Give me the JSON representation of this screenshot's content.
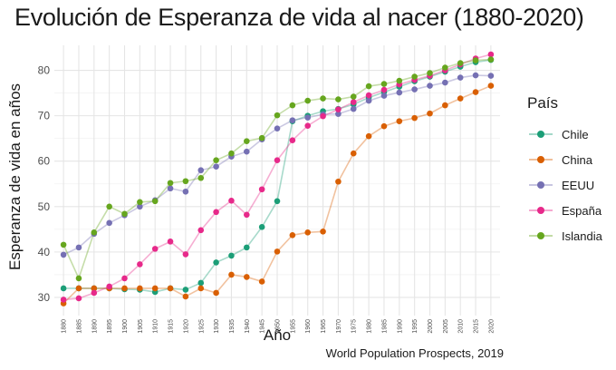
{
  "title": "Evolución de Esperanza de vida al nacer (1880-2020)",
  "caption": "World Population Prospects, 2019",
  "legend_title": "País",
  "chart_data": {
    "type": "line",
    "title": "Evolución de Esperanza de vida al nacer (1880-2020)",
    "xlabel": "Año",
    "ylabel": "Esperanza de vida en años",
    "xlim": [
      1877,
      2023
    ],
    "ylim": [
      26.0,
      85.5
    ],
    "yticks": [
      30,
      40,
      50,
      60,
      70,
      80
    ],
    "x": [
      1880,
      1885,
      1890,
      1895,
      1900,
      1905,
      1910,
      1915,
      1920,
      1925,
      1930,
      1935,
      1940,
      1945,
      1950,
      1955,
      1960,
      1965,
      1970,
      1975,
      1980,
      1985,
      1990,
      1995,
      2000,
      2005,
      2010,
      2015,
      2020
    ],
    "grid": true,
    "legend_position": "right",
    "series": [
      {
        "name": "Chile",
        "color": "#1b9e77",
        "values": [
          32.0,
          32.0,
          32.0,
          32.0,
          31.8,
          31.7,
          31.2,
          32.0,
          31.7,
          33.2,
          37.7,
          39.2,
          41.0,
          45.5,
          51.2,
          68.8,
          70.0,
          71.0,
          71.5,
          72.5,
          74.0,
          75.2,
          76.4,
          77.6,
          78.6,
          79.7,
          80.8,
          81.8,
          82.3
        ]
      },
      {
        "name": "China",
        "color": "#d95f02",
        "values": [
          28.7,
          32.0,
          32.0,
          32.0,
          32.0,
          32.0,
          32.0,
          32.0,
          30.2,
          32.0,
          31.0,
          35.0,
          34.5,
          33.5,
          40.1,
          43.7,
          44.3,
          44.5,
          55.5,
          61.7,
          65.5,
          67.7,
          68.8,
          69.5,
          70.5,
          72.3,
          73.8,
          75.2,
          76.6
        ]
      },
      {
        "name": "EEUU",
        "color": "#7570b3",
        "values": [
          39.4,
          41.0,
          44.0,
          46.4,
          48.1,
          50.0,
          51.4,
          54.0,
          53.3,
          58.0,
          58.8,
          61.0,
          62.1,
          64.8,
          67.2,
          69.0,
          69.6,
          70.3,
          70.4,
          71.5,
          73.3,
          74.4,
          75.1,
          75.8,
          76.6,
          77.3,
          78.4,
          78.9,
          78.8
        ]
      },
      {
        "name": "España",
        "color": "#e7298a",
        "values": [
          29.5,
          29.8,
          31.0,
          32.4,
          34.2,
          37.3,
          40.7,
          42.3,
          39.5,
          44.8,
          48.8,
          51.3,
          48.2,
          53.8,
          60.2,
          64.6,
          67.8,
          69.9,
          71.4,
          73.0,
          74.5,
          75.7,
          76.9,
          77.9,
          78.8,
          80.0,
          81.3,
          82.6,
          83.5
        ]
      },
      {
        "name": "Islandia",
        "color": "#66a61e",
        "values": [
          41.6,
          34.2,
          44.3,
          50.0,
          48.4,
          51.0,
          51.2,
          55.2,
          55.6,
          56.3,
          60.2,
          61.7,
          64.4,
          65.1,
          70.1,
          72.3,
          73.3,
          73.8,
          73.6,
          74.2,
          76.5,
          77.0,
          77.7,
          78.6,
          79.4,
          80.6,
          81.6,
          82.2,
          82.4
        ]
      }
    ]
  }
}
